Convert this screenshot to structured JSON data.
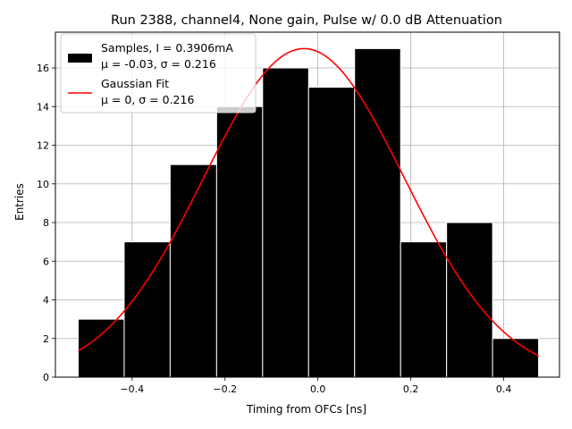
{
  "chart_data": {
    "type": "bar",
    "title": "Run 2388, channel4, None gain, Pulse w/ 0.0 dB Attenuation",
    "xlabel": "Timing from OFCs [ns]",
    "ylabel": "Entries",
    "xlim": [
      -0.565,
      0.52
    ],
    "ylim": [
      0,
      17.85
    ],
    "xticks": [
      -0.4,
      -0.2,
      0.0,
      0.2,
      0.4
    ],
    "xtick_labels": [
      "−0.4",
      "−0.2",
      "0.0",
      "0.2",
      "0.4"
    ],
    "yticks": [
      0,
      2,
      4,
      6,
      8,
      10,
      12,
      14,
      16
    ],
    "ytick_labels": [
      "0",
      "2",
      "4",
      "6",
      "8",
      "10",
      "12",
      "14",
      "16"
    ],
    "grid": true,
    "legend_position": "top-left",
    "bins": [
      {
        "x0": -0.516,
        "x1": -0.417,
        "count": 3
      },
      {
        "x0": -0.417,
        "x1": -0.318,
        "count": 7
      },
      {
        "x0": -0.318,
        "x1": -0.218,
        "count": 11
      },
      {
        "x0": -0.218,
        "x1": -0.119,
        "count": 14
      },
      {
        "x0": -0.119,
        "x1": -0.02,
        "count": 16
      },
      {
        "x0": -0.02,
        "x1": 0.079,
        "count": 15
      },
      {
        "x0": 0.079,
        "x1": 0.178,
        "count": 17
      },
      {
        "x0": 0.178,
        "x1": 0.277,
        "count": 7
      },
      {
        "x0": 0.277,
        "x1": 0.376,
        "count": 8
      },
      {
        "x0": 0.376,
        "x1": 0.475,
        "count": 2
      }
    ],
    "series": [
      {
        "name": "Samples, I = 0.3906mA",
        "name_line2": "μ = -0.03, σ = 0.216",
        "kind": "histogram",
        "color": "#000000",
        "edge_color": "#ffffff"
      },
      {
        "name": "Gaussian Fit",
        "name_line2": "μ = 0, σ = 0.216",
        "kind": "curve",
        "color": "#ff0000",
        "amplitude": 17.0,
        "mean": -0.03,
        "sigma": 0.216,
        "x_range": [
          -0.516,
          0.475
        ]
      }
    ]
  }
}
